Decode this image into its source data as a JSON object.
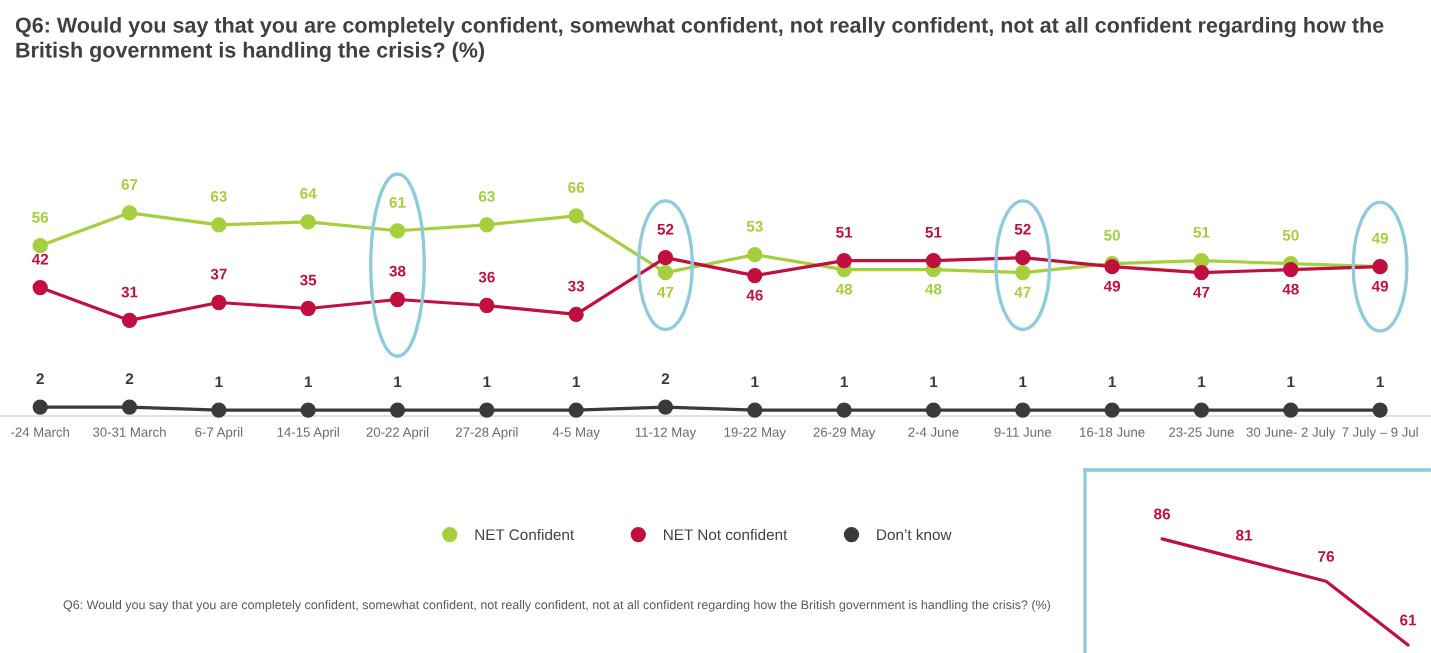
{
  "chart_data": [
    {
      "type": "line",
      "title": "Q6: Would you say that you are completely confident, somewhat confident, not really confident, not at all confident regarding how the British government is handling the crisis? (%)",
      "categories": [
        "-24 March",
        "30-31 March",
        "6-7 April",
        "14-15 April",
        "20-22 April",
        "27-28 April",
        "4-5 May",
        "11-12 May",
        "19-22 May",
        "26-29 May",
        "2-4 June",
        "9-11 June",
        "16-18 June",
        "23-25 June",
        "30 June- 2 July",
        "7 July – 9 Jul"
      ],
      "series": [
        {
          "name": "NET Confident",
          "color": "#a5cf3c",
          "values": [
            56,
            67,
            63,
            64,
            61,
            63,
            66,
            47,
            53,
            48,
            48,
            47,
            50,
            51,
            50,
            49
          ]
        },
        {
          "name": "NET Not confident",
          "color": "#c0103f",
          "values": [
            42,
            31,
            37,
            35,
            38,
            36,
            33,
            52,
            46,
            51,
            51,
            52,
            49,
            47,
            48,
            49
          ]
        },
        {
          "name": "Don’t know",
          "color": "#3a3a3a",
          "values": [
            2,
            2,
            1,
            1,
            1,
            1,
            1,
            2,
            1,
            1,
            1,
            1,
            1,
            1,
            1,
            1
          ]
        }
      ],
      "data_labels": true,
      "marker": "circle",
      "legend": "bottom",
      "annotations": [
        "Q6: Would you say that you are completely confident, somewhat confident, not really confident, not at all confident regarding how the British government is handling the crisis? (%)"
      ]
    },
    {
      "type": "line",
      "categories": [
        null,
        null,
        null,
        null
      ],
      "series": [
        {
          "color": "#c0103f",
          "values": [
            86,
            81,
            76,
            61
          ]
        }
      ],
      "data_labels": true
    }
  ]
}
